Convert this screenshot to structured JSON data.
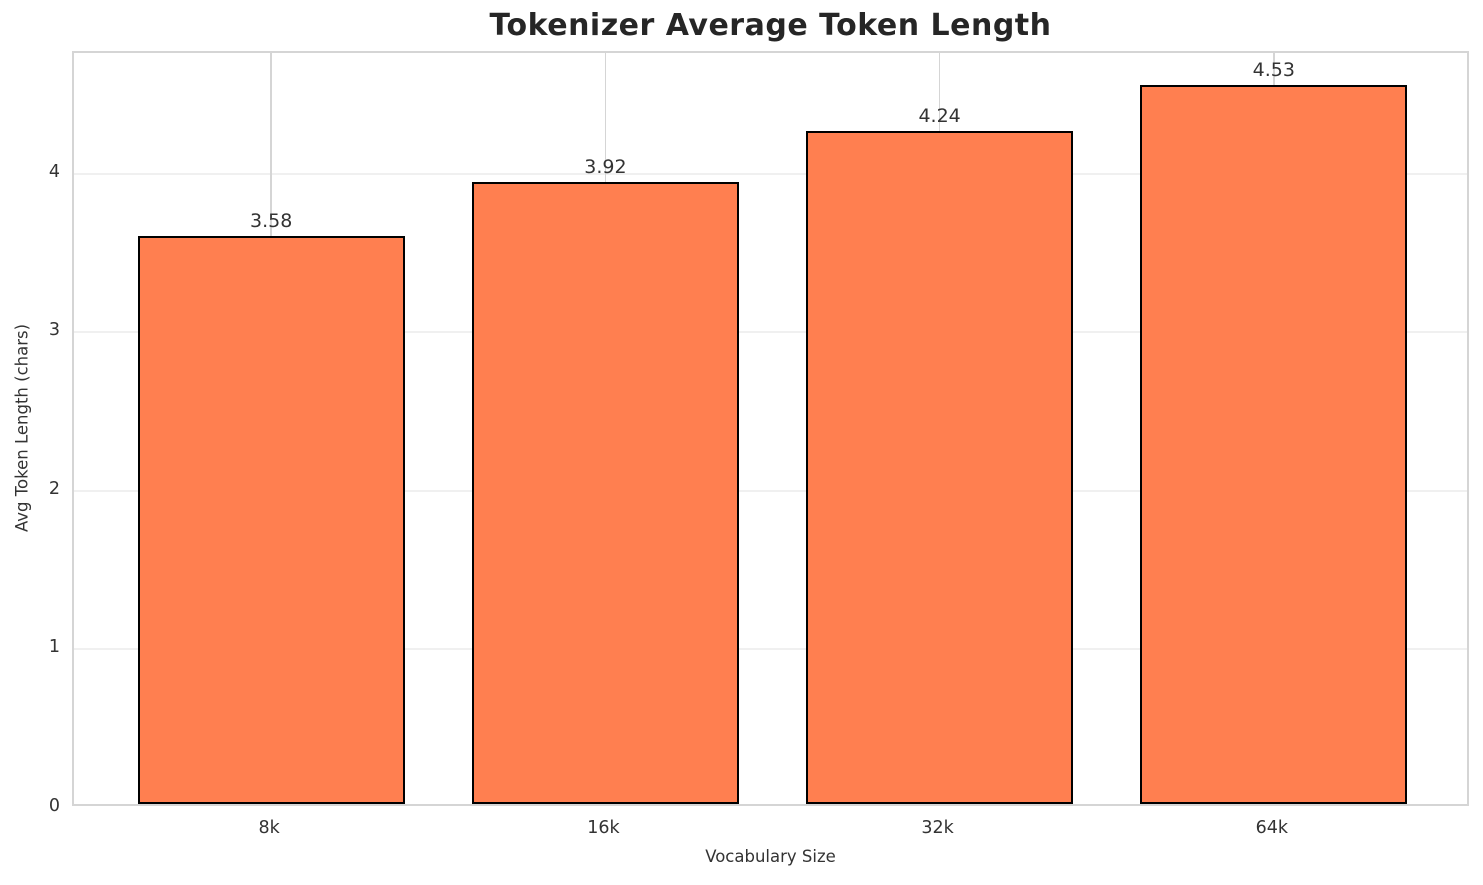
{
  "chart_data": {
    "type": "bar",
    "title": "Tokenizer Average Token Length",
    "xlabel": "Vocabulary Size",
    "ylabel": "Avg Token Length (chars)",
    "categories": [
      "8k",
      "16k",
      "32k",
      "64k"
    ],
    "values": [
      3.58,
      3.92,
      4.24,
      4.53
    ],
    "value_labels": [
      "3.58",
      "3.92",
      "4.24",
      "4.53"
    ],
    "yticks": [
      0,
      1,
      2,
      3,
      4
    ],
    "ytick_labels": [
      "0",
      "1",
      "2",
      "3",
      "4"
    ],
    "ylim": [
      0,
      4.76
    ],
    "xlim": [
      -0.59,
      3.59
    ],
    "bar_width_units": 0.8,
    "grid": true,
    "legend": "none",
    "colors": {
      "bar_fill": "#FF7F50",
      "bar_edge": "#000000",
      "spine": "#d5d5d5",
      "vgrid": "#d5d5d5",
      "hgrid": "#f0f0f0",
      "title_text": "#262626",
      "tick_text": "#333333"
    }
  }
}
